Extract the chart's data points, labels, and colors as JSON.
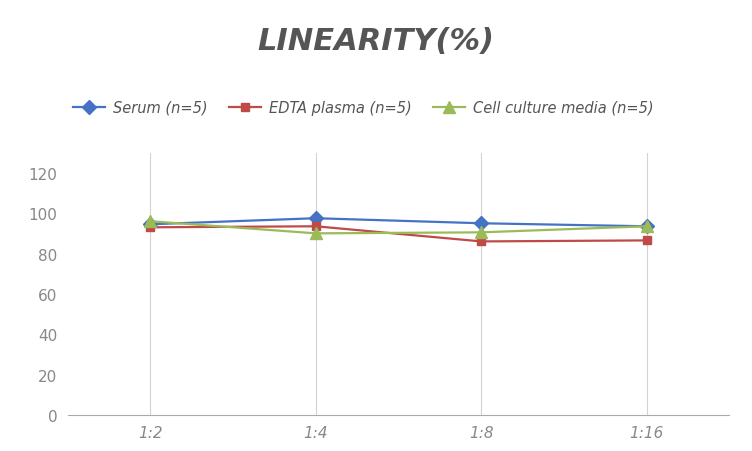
{
  "title": "LINEARITY(%)",
  "title_fontsize": 22,
  "title_fontstyle": "italic",
  "title_fontweight": "bold",
  "title_color": "#555555",
  "x_labels": [
    "1:2",
    "1:4",
    "1:8",
    "1:16"
  ],
  "x_positions": [
    0,
    1,
    2,
    3
  ],
  "serum": [
    94.5,
    97.5,
    95.0,
    93.5
  ],
  "edta": [
    93.0,
    93.5,
    86.0,
    86.5
  ],
  "cell": [
    96.0,
    90.0,
    90.5,
    93.5
  ],
  "serum_color": "#4472C4",
  "edta_color": "#BE4B48",
  "cell_color": "#9BBB59",
  "serum_label": "Serum (n=5)",
  "edta_label": "EDTA plasma (n=5)",
  "cell_label": "Cell culture media (n=5)",
  "ylim": [
    0,
    130
  ],
  "yticks": [
    0,
    20,
    40,
    60,
    80,
    100,
    120
  ],
  "background_color": "#FFFFFF",
  "grid_color": "#D3D3D3",
  "marker_size": 7,
  "line_width": 1.6,
  "legend_fontsize": 10.5,
  "tick_fontsize": 11,
  "tick_color": "#888888"
}
